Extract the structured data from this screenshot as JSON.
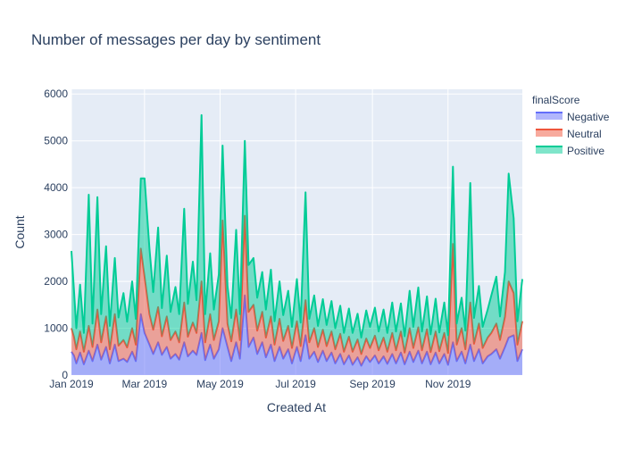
{
  "chart_data": {
    "type": "area",
    "stacked": true,
    "title": "Number of messages per day by sentiment",
    "xlabel": "Created At",
    "ylabel": "Count",
    "x_range": [
      "2019-01-01",
      "2019-12-31"
    ],
    "x_ticks": [
      {
        "date": "2019-01-01",
        "label": "Jan 2019"
      },
      {
        "date": "2019-03-01",
        "label": "Mar 2019"
      },
      {
        "date": "2019-05-01",
        "label": "May 2019"
      },
      {
        "date": "2019-07-01",
        "label": "Jul 2019"
      },
      {
        "date": "2019-09-01",
        "label": "Sep 2019"
      },
      {
        "date": "2019-11-01",
        "label": "Nov 2019"
      }
    ],
    "ylim": [
      0,
      6100
    ],
    "y_ticks": [
      0,
      1000,
      2000,
      3000,
      4000,
      5000,
      6000
    ],
    "grid": true,
    "legend": {
      "title": "finalScore",
      "placement": "top-right"
    },
    "colors": {
      "Negative": "#636efa",
      "Neutral": "#ef553b",
      "Positive": "#00cc96",
      "plot_bg": "#e5ecf6"
    },
    "series": [
      {
        "name": "Negative",
        "dates": [
          "2019-01-01",
          "2019-01-03",
          "2019-01-05",
          "2019-01-08",
          "2019-01-11",
          "2019-01-15",
          "2019-01-18",
          "2019-01-22",
          "2019-01-25",
          "2019-01-29",
          "2019-02-01",
          "2019-02-05",
          "2019-02-08",
          "2019-02-12",
          "2019-02-15",
          "2019-02-19",
          "2019-02-22",
          "2019-02-26",
          "2019-03-01",
          "2019-03-05",
          "2019-03-08",
          "2019-03-12",
          "2019-03-15",
          "2019-03-19",
          "2019-03-22",
          "2019-03-26",
          "2019-03-29",
          "2019-04-02",
          "2019-04-05",
          "2019-04-09",
          "2019-04-12",
          "2019-04-16",
          "2019-04-19",
          "2019-04-23",
          "2019-04-26",
          "2019-04-30",
          "2019-05-03",
          "2019-05-07",
          "2019-05-10",
          "2019-05-14",
          "2019-05-17",
          "2019-05-21",
          "2019-05-24",
          "2019-05-28",
          "2019-05-31",
          "2019-06-04",
          "2019-06-07",
          "2019-06-11",
          "2019-06-14",
          "2019-06-18",
          "2019-06-21",
          "2019-06-25",
          "2019-06-28",
          "2019-07-02",
          "2019-07-05",
          "2019-07-09",
          "2019-07-12",
          "2019-07-16",
          "2019-07-19",
          "2019-07-23",
          "2019-07-26",
          "2019-07-30",
          "2019-08-02",
          "2019-08-06",
          "2019-08-09",
          "2019-08-13",
          "2019-08-16",
          "2019-08-20",
          "2019-08-23",
          "2019-08-27",
          "2019-08-30",
          "2019-09-03",
          "2019-09-06",
          "2019-09-10",
          "2019-09-13",
          "2019-09-17",
          "2019-09-20",
          "2019-09-24",
          "2019-09-27",
          "2019-10-01",
          "2019-10-04",
          "2019-10-08",
          "2019-10-11",
          "2019-10-15",
          "2019-10-18",
          "2019-10-22",
          "2019-10-25",
          "2019-10-29",
          "2019-11-01",
          "2019-11-05",
          "2019-11-08",
          "2019-11-12",
          "2019-11-15",
          "2019-11-19",
          "2019-11-22",
          "2019-11-26",
          "2019-11-29",
          "2019-12-03",
          "2019-12-06",
          "2019-12-10",
          "2019-12-13",
          "2019-12-17",
          "2019-12-20",
          "2019-12-24",
          "2019-12-27",
          "2019-12-31"
        ],
        "values": [
          500,
          420,
          250,
          480,
          230,
          520,
          300,
          650,
          330,
          600,
          250,
          650,
          300,
          350,
          280,
          500,
          300,
          1300,
          900,
          650,
          450,
          700,
          430,
          600,
          350,
          450,
          330,
          700,
          400,
          520,
          430,
          900,
          320,
          650,
          350,
          550,
          1000,
          600,
          300,
          700,
          350,
          1700,
          600,
          800,
          450,
          700,
          380,
          650,
          300,
          600,
          350,
          550,
          250,
          600,
          300,
          850,
          350,
          500,
          280,
          520,
          300,
          480,
          250,
          450,
          230,
          420,
          220,
          380,
          200,
          400,
          280,
          420,
          250,
          400,
          240,
          450,
          250,
          480,
          230,
          500,
          280,
          520,
          250,
          500,
          230,
          480,
          250,
          450,
          220,
          700,
          300,
          500,
          250,
          650,
          300,
          550,
          250,
          400,
          450,
          550,
          350,
          600,
          800,
          850,
          300,
          550
        ]
      },
      {
        "name": "Neutral",
        "dates": [
          "2019-01-01",
          "2019-01-03",
          "2019-01-05",
          "2019-01-08",
          "2019-01-11",
          "2019-01-15",
          "2019-01-18",
          "2019-01-22",
          "2019-01-25",
          "2019-01-29",
          "2019-02-01",
          "2019-02-05",
          "2019-02-08",
          "2019-02-12",
          "2019-02-15",
          "2019-02-19",
          "2019-02-22",
          "2019-02-26",
          "2019-03-01",
          "2019-03-05",
          "2019-03-08",
          "2019-03-12",
          "2019-03-15",
          "2019-03-19",
          "2019-03-22",
          "2019-03-26",
          "2019-03-29",
          "2019-04-02",
          "2019-04-05",
          "2019-04-09",
          "2019-04-12",
          "2019-04-16",
          "2019-04-19",
          "2019-04-23",
          "2019-04-26",
          "2019-04-30",
          "2019-05-03",
          "2019-05-07",
          "2019-05-10",
          "2019-05-14",
          "2019-05-17",
          "2019-05-21",
          "2019-05-24",
          "2019-05-28",
          "2019-05-31",
          "2019-06-04",
          "2019-06-07",
          "2019-06-11",
          "2019-06-14",
          "2019-06-18",
          "2019-06-21",
          "2019-06-25",
          "2019-06-28",
          "2019-07-02",
          "2019-07-05",
          "2019-07-09",
          "2019-07-12",
          "2019-07-16",
          "2019-07-19",
          "2019-07-23",
          "2019-07-26",
          "2019-07-30",
          "2019-08-02",
          "2019-08-06",
          "2019-08-09",
          "2019-08-13",
          "2019-08-16",
          "2019-08-20",
          "2019-08-23",
          "2019-08-27",
          "2019-08-30",
          "2019-09-03",
          "2019-09-06",
          "2019-09-10",
          "2019-09-13",
          "2019-09-17",
          "2019-09-20",
          "2019-09-24",
          "2019-09-27",
          "2019-10-01",
          "2019-10-04",
          "2019-10-08",
          "2019-10-11",
          "2019-10-15",
          "2019-10-18",
          "2019-10-22",
          "2019-10-25",
          "2019-10-29",
          "2019-11-01",
          "2019-11-05",
          "2019-11-08",
          "2019-11-12",
          "2019-11-15",
          "2019-11-19",
          "2019-11-22",
          "2019-11-26",
          "2019-11-29",
          "2019-12-03",
          "2019-12-06",
          "2019-12-10",
          "2019-12-13",
          "2019-12-17",
          "2019-12-20",
          "2019-12-24",
          "2019-12-27",
          "2019-12-31"
        ],
        "values": [
          500,
          400,
          300,
          450,
          270,
          530,
          300,
          750,
          370,
          650,
          300,
          650,
          330,
          400,
          310,
          500,
          350,
          1400,
          1200,
          650,
          520,
          750,
          400,
          650,
          400,
          480,
          370,
          850,
          420,
          600,
          470,
          1100,
          380,
          650,
          400,
          600,
          2300,
          500,
          420,
          700,
          400,
          1700,
          750,
          700,
          500,
          650,
          420,
          600,
          350,
          600,
          380,
          500,
          330,
          550,
          320,
          750,
          350,
          500,
          320,
          450,
          320,
          450,
          300,
          430,
          270,
          400,
          280,
          380,
          250,
          380,
          300,
          420,
          280,
          400,
          260,
          450,
          280,
          450,
          250,
          500,
          300,
          500,
          280,
          480,
          260,
          450,
          260,
          450,
          250,
          2100,
          350,
          500,
          300,
          900,
          370,
          550,
          330,
          400,
          450,
          550,
          400,
          650,
          1200,
          900,
          350,
          600
        ]
      },
      {
        "name": "Positive",
        "dates": [
          "2019-01-01",
          "2019-01-03",
          "2019-01-05",
          "2019-01-08",
          "2019-01-11",
          "2019-01-15",
          "2019-01-18",
          "2019-01-22",
          "2019-01-25",
          "2019-01-29",
          "2019-02-01",
          "2019-02-05",
          "2019-02-08",
          "2019-02-12",
          "2019-02-15",
          "2019-02-19",
          "2019-02-22",
          "2019-02-26",
          "2019-03-01",
          "2019-03-05",
          "2019-03-08",
          "2019-03-12",
          "2019-03-15",
          "2019-03-19",
          "2019-03-22",
          "2019-03-26",
          "2019-03-29",
          "2019-04-02",
          "2019-04-05",
          "2019-04-09",
          "2019-04-12",
          "2019-04-16",
          "2019-04-19",
          "2019-04-23",
          "2019-04-26",
          "2019-04-30",
          "2019-05-03",
          "2019-05-07",
          "2019-05-10",
          "2019-05-14",
          "2019-05-17",
          "2019-05-21",
          "2019-05-24",
          "2019-05-28",
          "2019-05-31",
          "2019-06-04",
          "2019-06-07",
          "2019-06-11",
          "2019-06-14",
          "2019-06-18",
          "2019-06-21",
          "2019-06-25",
          "2019-06-28",
          "2019-07-02",
          "2019-07-05",
          "2019-07-09",
          "2019-07-12",
          "2019-07-16",
          "2019-07-19",
          "2019-07-23",
          "2019-07-26",
          "2019-07-30",
          "2019-08-02",
          "2019-08-06",
          "2019-08-09",
          "2019-08-13",
          "2019-08-16",
          "2019-08-20",
          "2019-08-23",
          "2019-08-27",
          "2019-08-30",
          "2019-09-03",
          "2019-09-06",
          "2019-09-10",
          "2019-09-13",
          "2019-09-17",
          "2019-09-20",
          "2019-09-24",
          "2019-09-27",
          "2019-10-01",
          "2019-10-04",
          "2019-10-08",
          "2019-10-11",
          "2019-10-15",
          "2019-10-18",
          "2019-10-22",
          "2019-10-25",
          "2019-10-29",
          "2019-11-01",
          "2019-11-05",
          "2019-11-08",
          "2019-11-12",
          "2019-11-15",
          "2019-11-19",
          "2019-11-22",
          "2019-11-26",
          "2019-11-29",
          "2019-12-03",
          "2019-12-06",
          "2019-12-10",
          "2019-12-13",
          "2019-12-17",
          "2019-12-20",
          "2019-12-24",
          "2019-12-27",
          "2019-12-31"
        ],
        "values": [
          1650,
          1000,
          450,
          1000,
          400,
          2800,
          500,
          2400,
          600,
          1500,
          500,
          1200,
          600,
          1000,
          550,
          1000,
          550,
          1500,
          2100,
          1400,
          800,
          1700,
          600,
          1300,
          600,
          950,
          600,
          2000,
          700,
          1300,
          700,
          3550,
          600,
          1300,
          650,
          1000,
          1600,
          800,
          500,
          1700,
          550,
          1600,
          1000,
          1000,
          700,
          850,
          600,
          1000,
          500,
          800,
          550,
          750,
          450,
          900,
          500,
          2300,
          500,
          700,
          450,
          650,
          450,
          650,
          450,
          600,
          400,
          600,
          400,
          550,
          350,
          600,
          450,
          600,
          400,
          600,
          400,
          650,
          400,
          600,
          350,
          800,
          450,
          850,
          400,
          700,
          380,
          700,
          400,
          650,
          380,
          1650,
          450,
          650,
          400,
          2550,
          550,
          800,
          450,
          600,
          800,
          1000,
          500,
          950,
          2300,
          1600,
          500,
          900
        ]
      }
    ]
  }
}
